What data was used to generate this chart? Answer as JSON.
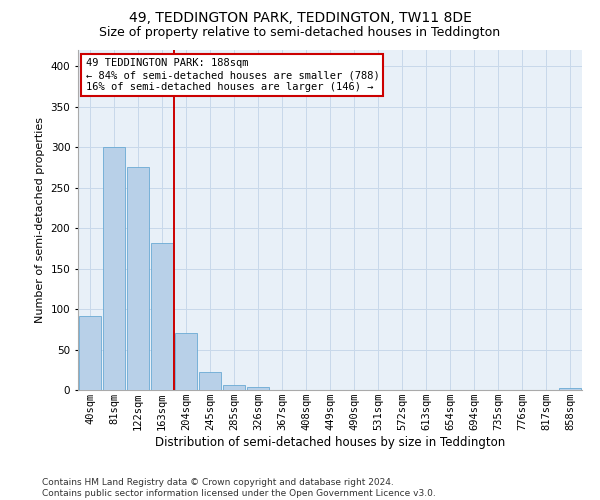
{
  "title": "49, TEDDINGTON PARK, TEDDINGTON, TW11 8DE",
  "subtitle": "Size of property relative to semi-detached houses in Teddington",
  "xlabel": "Distribution of semi-detached houses by size in Teddington",
  "ylabel": "Number of semi-detached properties",
  "categories": [
    "40sqm",
    "81sqm",
    "122sqm",
    "163sqm",
    "204sqm",
    "245sqm",
    "285sqm",
    "326sqm",
    "367sqm",
    "408sqm",
    "449sqm",
    "490sqm",
    "531sqm",
    "572sqm",
    "613sqm",
    "654sqm",
    "694sqm",
    "735sqm",
    "776sqm",
    "817sqm",
    "858sqm"
  ],
  "values": [
    91,
    300,
    275,
    181,
    70,
    22,
    6,
    4,
    0,
    0,
    0,
    0,
    0,
    0,
    0,
    0,
    0,
    0,
    0,
    0,
    3
  ],
  "bar_color": "#b8d0e8",
  "bar_edge_color": "#6aaad4",
  "bg_color": "#e8f0f8",
  "grid_color": "#c8d8ea",
  "vline_color": "#cc0000",
  "vline_x_index": 3.5,
  "annotation_text": "49 TEDDINGTON PARK: 188sqm\n← 84% of semi-detached houses are smaller (788)\n16% of semi-detached houses are larger (146) →",
  "annotation_box_color": "#ffffff",
  "annotation_box_edge": "#cc0000",
  "footer_text": "Contains HM Land Registry data © Crown copyright and database right 2024.\nContains public sector information licensed under the Open Government Licence v3.0.",
  "ylim": [
    0,
    420
  ],
  "yticks": [
    0,
    50,
    100,
    150,
    200,
    250,
    300,
    350,
    400
  ],
  "title_fontsize": 10,
  "subtitle_fontsize": 9,
  "ylabel_fontsize": 8,
  "xlabel_fontsize": 8.5,
  "tick_fontsize": 7.5,
  "annotation_fontsize": 7.5,
  "footer_fontsize": 6.5
}
